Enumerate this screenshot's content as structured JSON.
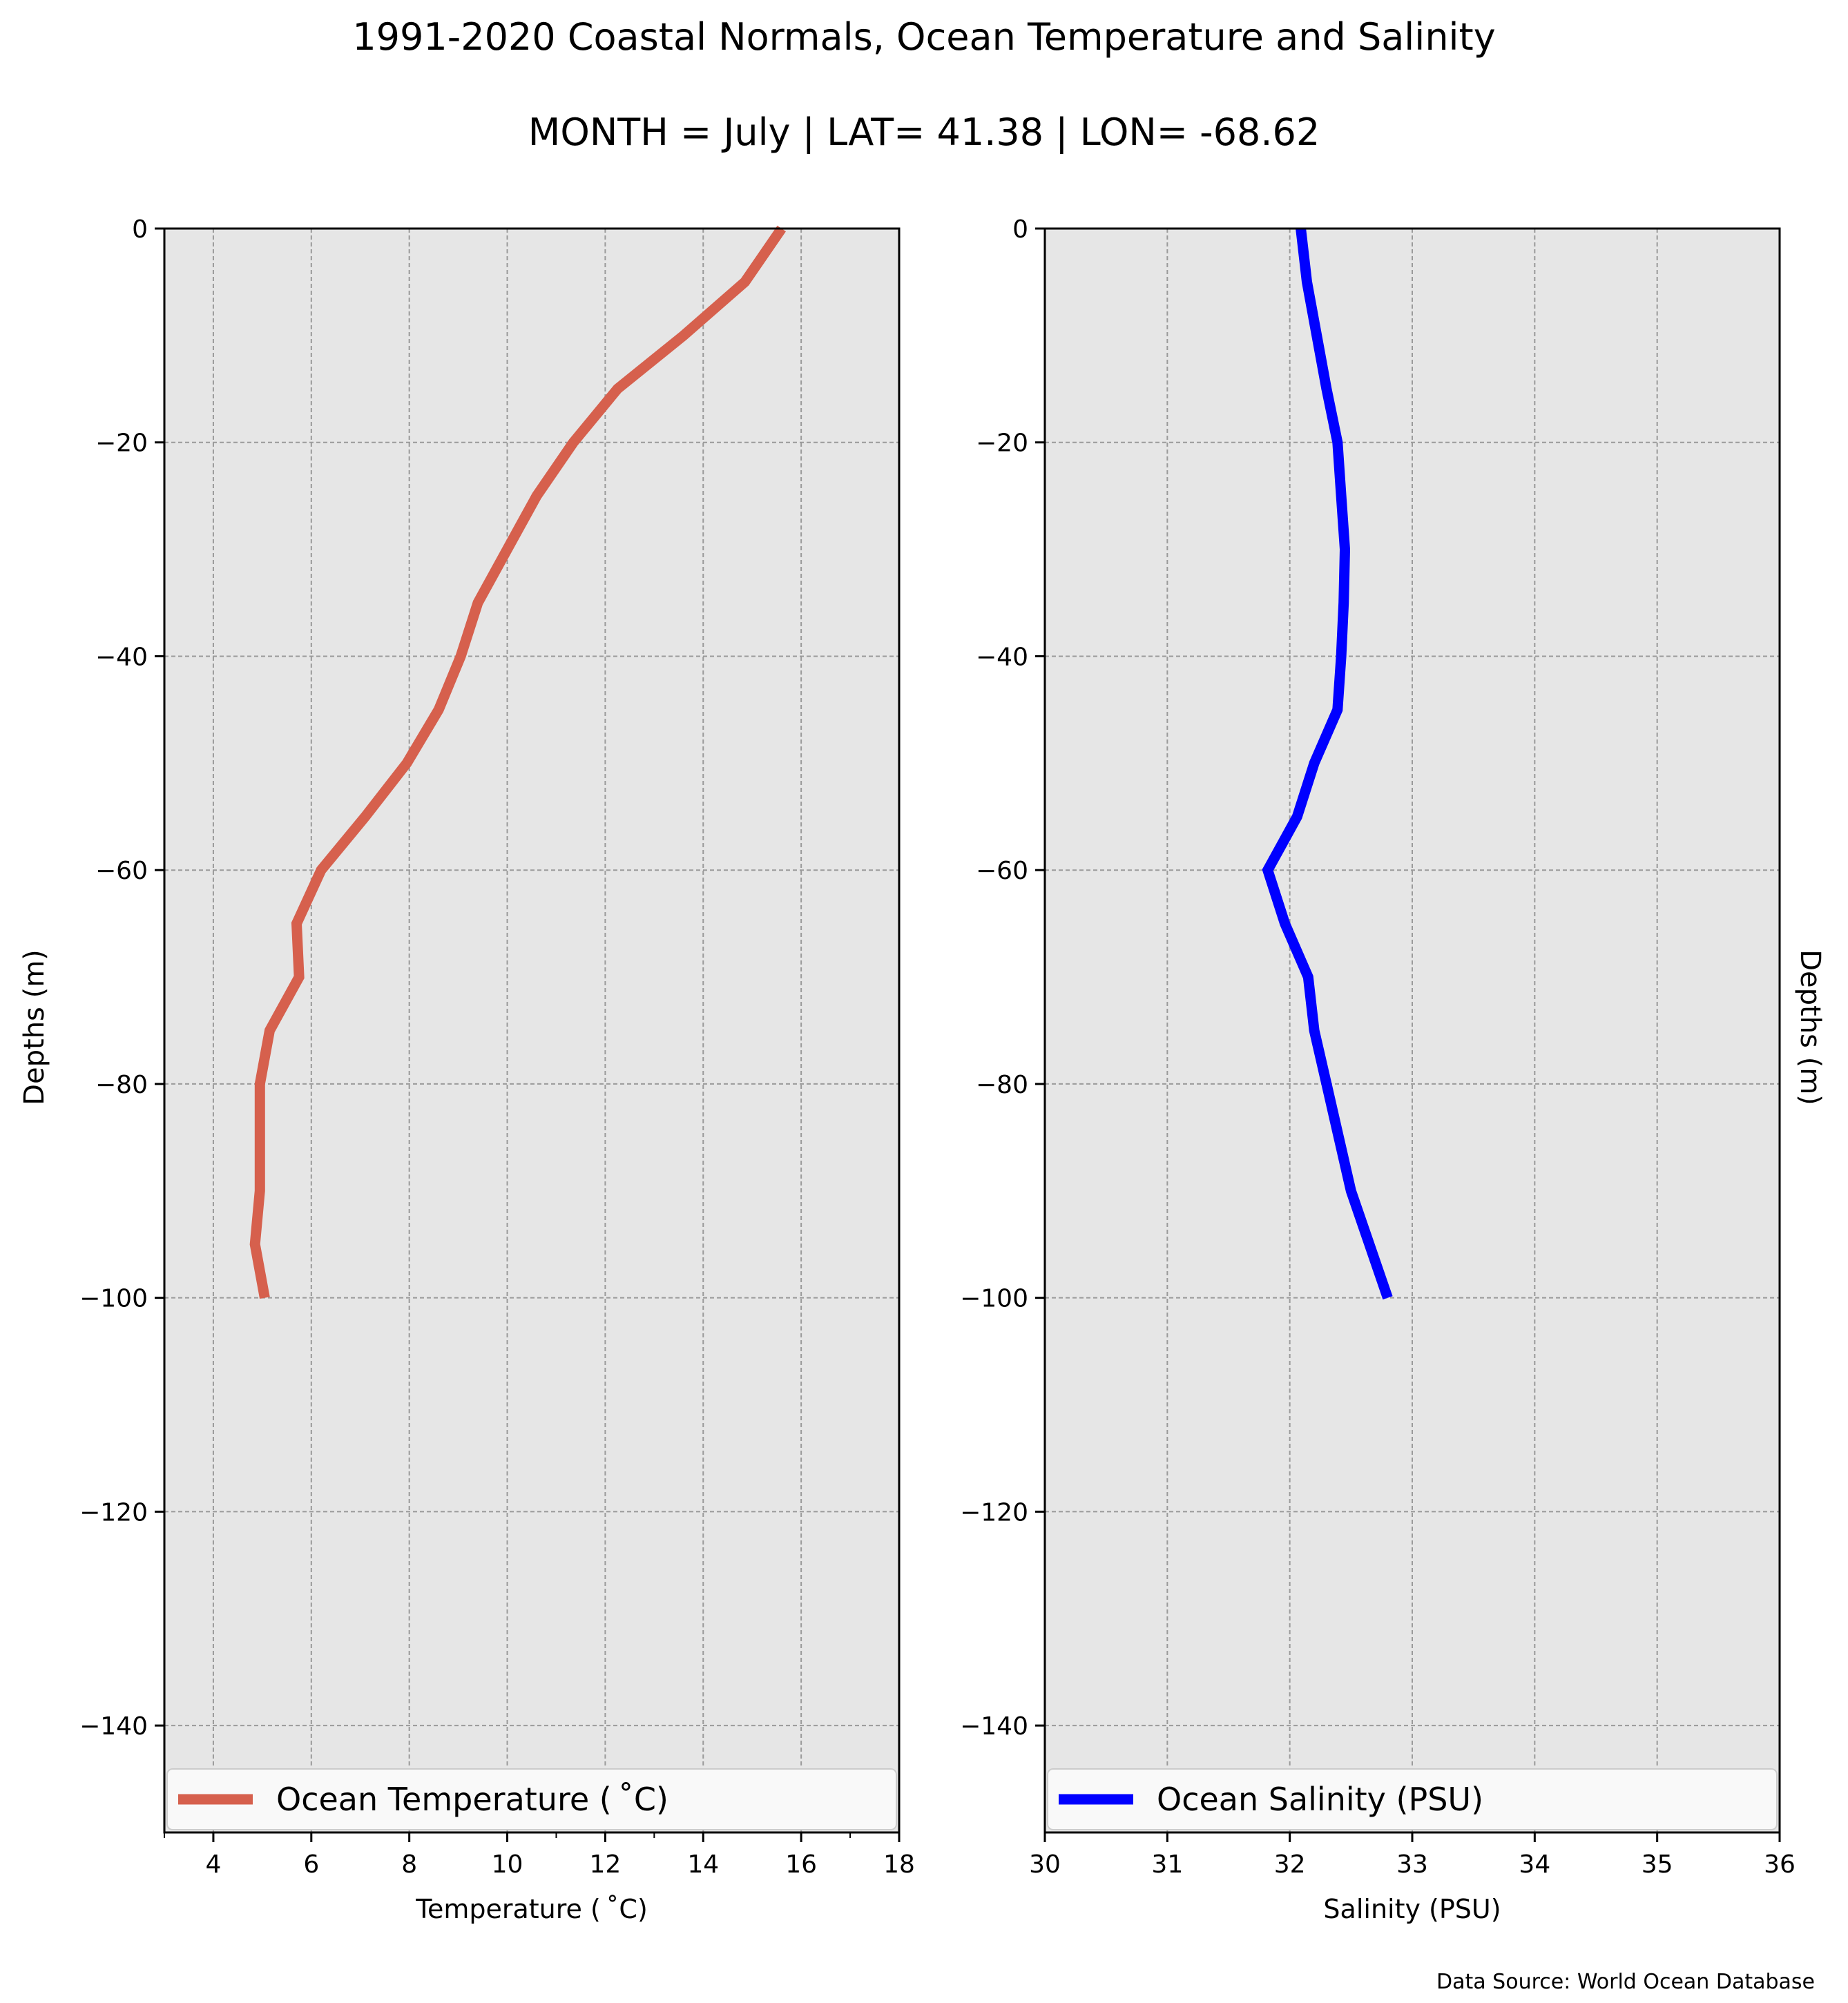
{
  "figure": {
    "title": "1991-2020 Coastal Normals, Ocean Temperature and Salinity",
    "subtitle": "MONTH = July | LAT= 41.38 | LON= -68.62",
    "source": "Data Source: World Ocean Database"
  },
  "chart_data": [
    {
      "type": "line",
      "xlabel": "Temperature ($^\\circ$C)",
      "xlabel_display": "Temperature ( ˚C)",
      "ylabel": "Depths (m)",
      "xlim": [
        3,
        18
      ],
      "ylim": [
        -150,
        0
      ],
      "xticks": [
        4,
        6,
        8,
        10,
        12,
        14,
        16,
        18
      ],
      "yticks": [
        0,
        -20,
        -40,
        -60,
        -80,
        -100,
        -120,
        -140
      ],
      "grid": true,
      "legend_position": "bottom",
      "series": [
        {
          "name": "Ocean Temperature ( ˚C)",
          "color": "#d6604d",
          "x": [
            15.6,
            14.85,
            13.6,
            12.25,
            11.35,
            10.6,
            10.0,
            9.4,
            9.05,
            8.6,
            7.95,
            7.1,
            6.2,
            5.7,
            5.75,
            5.15,
            4.95,
            4.95,
            4.95,
            4.85,
            5.05
          ],
          "y": [
            0,
            -5,
            -10,
            -15,
            -20,
            -25,
            -30,
            -35,
            -40,
            -45,
            -50,
            -55,
            -60,
            -65,
            -70,
            -75,
            -80,
            -85,
            -90,
            -95,
            -100
          ]
        }
      ]
    },
    {
      "type": "line",
      "xlabel": "Salinity (PSU)",
      "ylabel": "Depths (m)",
      "xlim": [
        30,
        36
      ],
      "ylim": [
        -150,
        0
      ],
      "xticks": [
        30,
        31,
        32,
        33,
        34,
        35,
        36
      ],
      "yticks": [
        0,
        -20,
        -40,
        -60,
        -80,
        -100,
        -120,
        -140
      ],
      "grid": true,
      "legend_position": "bottom",
      "series": [
        {
          "name": "Ocean Salinity (PSU)",
          "color": "#0000ff",
          "x": [
            32.09,
            32.14,
            32.22,
            32.3,
            32.39,
            32.42,
            32.45,
            32.44,
            32.42,
            32.39,
            32.2,
            32.06,
            31.82,
            31.96,
            32.15,
            32.2,
            32.3,
            32.4,
            32.5,
            32.65,
            32.8
          ],
          "y": [
            0,
            -5,
            -10,
            -15,
            -20,
            -25,
            -30,
            -35,
            -40,
            -45,
            -50,
            -55,
            -60,
            -65,
            -70,
            -75,
            -80,
            -85,
            -90,
            -95,
            -100
          ]
        }
      ]
    }
  ]
}
